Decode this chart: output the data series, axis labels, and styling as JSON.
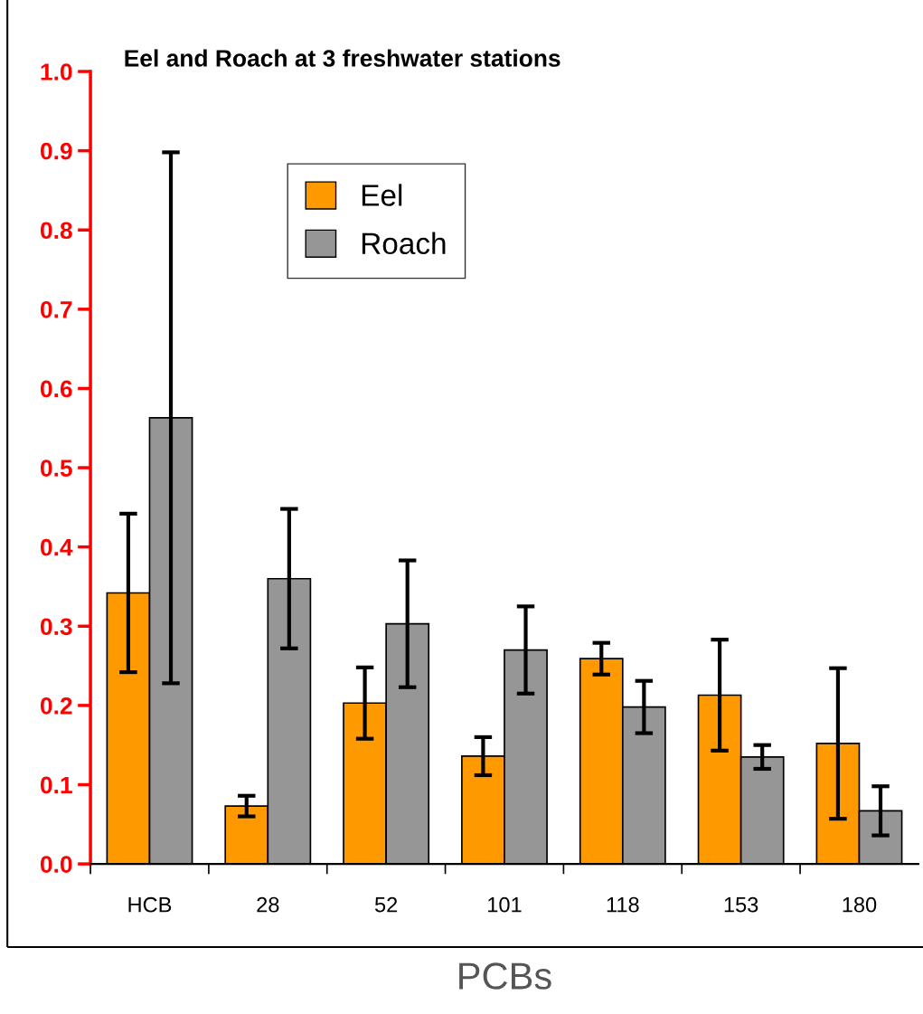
{
  "chart_data": {
    "type": "bar",
    "title": "Eel and Roach at 3 freshwater stations",
    "xlabel": "PCBs",
    "categories": [
      "HCB",
      "28",
      "52",
      "101",
      "118",
      "153",
      "180"
    ],
    "series": [
      {
        "name": "Eel",
        "color": "#ff9900",
        "values": [
          0.342,
          0.073,
          0.203,
          0.136,
          0.259,
          0.213,
          0.152
        ],
        "errors": [
          0.1,
          0.013,
          0.045,
          0.024,
          0.02,
          0.07,
          0.095
        ]
      },
      {
        "name": "Roach",
        "color": "#969696",
        "values": [
          0.563,
          0.36,
          0.303,
          0.27,
          0.198,
          0.135,
          0.067
        ],
        "errors": [
          0.335,
          0.088,
          0.08,
          0.055,
          0.033,
          0.015,
          0.031
        ]
      }
    ],
    "ylim": [
      0.0,
      1.0
    ],
    "yticks": [
      {
        "value": 0,
        "label": "0.0"
      },
      0.1,
      0.2,
      0.3,
      0.4,
      0.5,
      0.6,
      0.7,
      0.8,
      0.9,
      {
        "value": 1,
        "label": "1.0"
      }
    ],
    "grid": false,
    "legend": "top"
  }
}
